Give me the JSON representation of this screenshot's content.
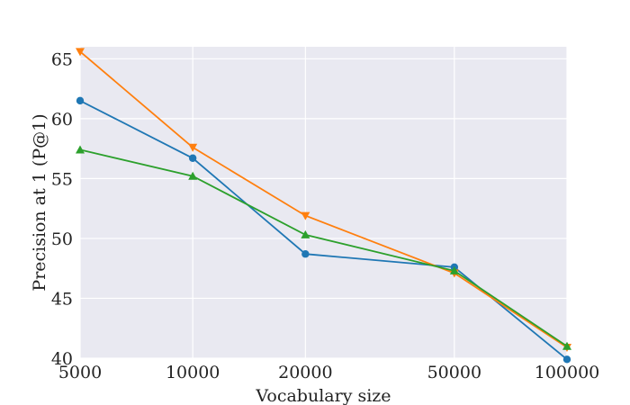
{
  "chart_data": {
    "type": "line",
    "title": "",
    "xlabel": "Vocabulary size",
    "ylabel": "Precision at 1 (P@1)",
    "x_scale": "log",
    "xlim": [
      5000,
      100000
    ],
    "ylim": [
      40,
      66
    ],
    "x_ticks": [
      5000,
      10000,
      20000,
      50000,
      100000
    ],
    "x_tick_labels": [
      "5000",
      "10000",
      "20000",
      "50000",
      "100000"
    ],
    "y_ticks": [
      40,
      45,
      50,
      55,
      60,
      65
    ],
    "y_tick_labels": [
      "40",
      "45",
      "50",
      "55",
      "60",
      "65"
    ],
    "grid": true,
    "background": "#e9e9f1",
    "x": [
      5000,
      10000,
      20000,
      50000,
      100000
    ],
    "series": [
      {
        "color": "#1f77b4",
        "marker": "circle",
        "values": [
          61.5,
          56.7,
          48.7,
          47.6,
          39.9
        ]
      },
      {
        "color": "#ff7f0e",
        "marker": "triangle-down",
        "values": [
          65.6,
          57.6,
          51.9,
          47.1,
          40.9
        ]
      },
      {
        "color": "#2ca02c",
        "marker": "triangle-up",
        "values": [
          57.4,
          55.2,
          50.3,
          47.3,
          41.0
        ]
      }
    ]
  }
}
